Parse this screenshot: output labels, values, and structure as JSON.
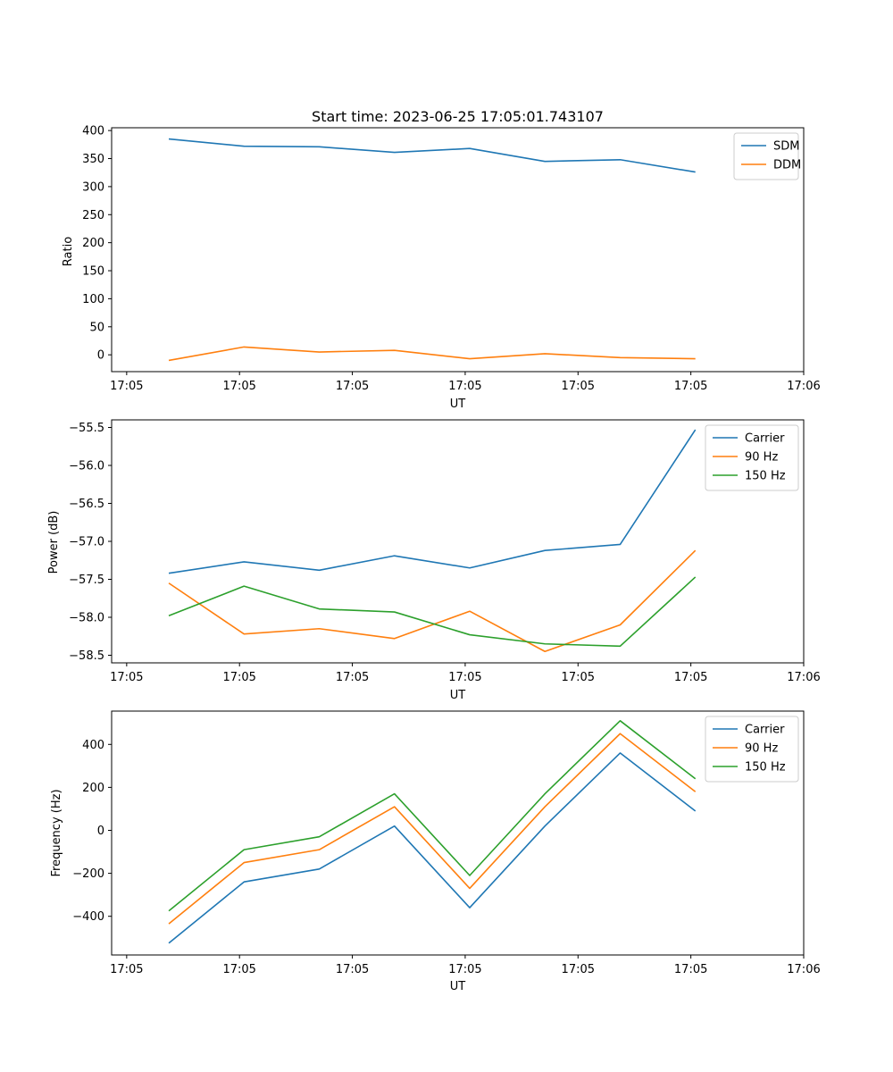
{
  "colors": {
    "blue": "#1f77b4",
    "orange": "#ff7f0e",
    "green": "#2ca02c"
  },
  "chart_data": [
    {
      "type": "line",
      "title": "Start time: 2023-06-25 17:05:01.743107",
      "xlabel": "UT",
      "ylabel": "Ratio",
      "xlim": [
        0,
        9.2
      ],
      "ylim": [
        -30,
        405
      ],
      "x": [
        0.76,
        1.76,
        2.76,
        3.76,
        4.76,
        5.76,
        6.76,
        7.76
      ],
      "xticks": [
        {
          "value": 0.2,
          "label": "17:05"
        },
        {
          "value": 1.7,
          "label": "17:05"
        },
        {
          "value": 3.2,
          "label": "17:05"
        },
        {
          "value": 4.7,
          "label": "17:05"
        },
        {
          "value": 6.2,
          "label": "17:05"
        },
        {
          "value": 7.7,
          "label": "17:05"
        },
        {
          "value": 9.2,
          "label": "17:06"
        }
      ],
      "yticks": [
        {
          "value": 400,
          "label": "400"
        },
        {
          "value": 350,
          "label": "350"
        },
        {
          "value": 300,
          "label": "300"
        },
        {
          "value": 250,
          "label": "250"
        },
        {
          "value": 200,
          "label": "200"
        },
        {
          "value": 150,
          "label": "150"
        },
        {
          "value": 100,
          "label": "100"
        },
        {
          "value": 50,
          "label": "50"
        },
        {
          "value": 0,
          "label": "0"
        }
      ],
      "legend": "top-right",
      "series": [
        {
          "name": "SDM",
          "color": "#1f77b4",
          "values": [
            385,
            372,
            371,
            361,
            368,
            345,
            348,
            326
          ]
        },
        {
          "name": "DDM",
          "color": "#ff7f0e",
          "values": [
            -10,
            14,
            5,
            8,
            -7,
            2,
            -5,
            -7
          ]
        }
      ]
    },
    {
      "type": "line",
      "title": "",
      "xlabel": "UT",
      "ylabel": "Power (dB)",
      "xlim": [
        0,
        9.2
      ],
      "ylim": [
        -58.6,
        -55.4
      ],
      "x": [
        0.76,
        1.76,
        2.76,
        3.76,
        4.76,
        5.76,
        6.76,
        7.76
      ],
      "xticks": [
        {
          "value": 0.2,
          "label": "17:05"
        },
        {
          "value": 1.7,
          "label": "17:05"
        },
        {
          "value": 3.2,
          "label": "17:05"
        },
        {
          "value": 4.7,
          "label": "17:05"
        },
        {
          "value": 6.2,
          "label": "17:05"
        },
        {
          "value": 7.7,
          "label": "17:05"
        },
        {
          "value": 9.2,
          "label": "17:06"
        }
      ],
      "yticks": [
        {
          "value": -55.5,
          "label": "−55.5"
        },
        {
          "value": -56.0,
          "label": "−56.0"
        },
        {
          "value": -56.5,
          "label": "−56.5"
        },
        {
          "value": -57.0,
          "label": "−57.0"
        },
        {
          "value": -57.5,
          "label": "−57.5"
        },
        {
          "value": -58.0,
          "label": "−58.0"
        },
        {
          "value": -58.5,
          "label": "−58.5"
        }
      ],
      "legend": "top-right",
      "series": [
        {
          "name": "Carrier",
          "color": "#1f77b4",
          "values": [
            -57.42,
            -57.27,
            -57.38,
            -57.19,
            -57.35,
            -57.12,
            -57.04,
            -55.53
          ]
        },
        {
          "name": "90 Hz",
          "color": "#ff7f0e",
          "values": [
            -57.55,
            -58.22,
            -58.15,
            -58.28,
            -57.92,
            -58.45,
            -58.1,
            -57.12
          ]
        },
        {
          "name": "150 Hz",
          "color": "#2ca02c",
          "values": [
            -57.98,
            -57.59,
            -57.89,
            -57.93,
            -58.23,
            -58.35,
            -58.38,
            -57.47
          ]
        }
      ]
    },
    {
      "type": "line",
      "title": "",
      "xlabel": "UT",
      "ylabel": "Frequency (Hz)",
      "xlim": [
        0,
        9.2
      ],
      "ylim": [
        -580,
        555
      ],
      "x": [
        0.76,
        1.76,
        2.76,
        3.76,
        4.76,
        5.76,
        6.76,
        7.76
      ],
      "xticks": [
        {
          "value": 0.2,
          "label": "17:05"
        },
        {
          "value": 1.7,
          "label": "17:05"
        },
        {
          "value": 3.2,
          "label": "17:05"
        },
        {
          "value": 4.7,
          "label": "17:05"
        },
        {
          "value": 6.2,
          "label": "17:05"
        },
        {
          "value": 7.7,
          "label": "17:05"
        },
        {
          "value": 9.2,
          "label": "17:06"
        }
      ],
      "yticks": [
        {
          "value": 400,
          "label": "400"
        },
        {
          "value": 200,
          "label": "200"
        },
        {
          "value": 0,
          "label": "0"
        },
        {
          "value": -200,
          "label": "−200"
        },
        {
          "value": -400,
          "label": "−400"
        }
      ],
      "legend": "top-right",
      "series": [
        {
          "name": "Carrier",
          "color": "#1f77b4",
          "values": [
            -525,
            -240,
            -180,
            20,
            -360,
            20,
            360,
            90
          ]
        },
        {
          "name": "90 Hz",
          "color": "#ff7f0e",
          "values": [
            -435,
            -150,
            -90,
            110,
            -270,
            110,
            450,
            180
          ]
        },
        {
          "name": "150 Hz",
          "color": "#2ca02c",
          "values": [
            -375,
            -90,
            -30,
            170,
            -210,
            170,
            510,
            240
          ]
        }
      ]
    }
  ]
}
